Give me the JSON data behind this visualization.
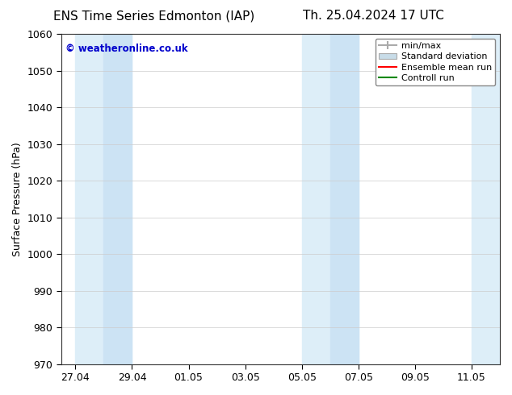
{
  "title_left": "ENS Time Series Edmonton (IAP)",
  "title_right": "Th. 25.04.2024 17 UTC",
  "ylabel": "Surface Pressure (hPa)",
  "ylim": [
    970,
    1060
  ],
  "yticks": [
    970,
    980,
    990,
    1000,
    1010,
    1020,
    1030,
    1040,
    1050,
    1060
  ],
  "bg_color": "#ffffff",
  "plot_bg_color": "#ffffff",
  "x_tick_positions": [
    0,
    2,
    4,
    6,
    8,
    10,
    12,
    14
  ],
  "x_tick_labels": [
    "27.04",
    "29.04",
    "01.05",
    "03.05",
    "05.05",
    "07.05",
    "09.05",
    "11.05"
  ],
  "x_lim": [
    -0.5,
    15.0
  ],
  "watermark": "© weatheronline.co.uk",
  "watermark_color": "#0000cc",
  "band_light": "#ddeef8",
  "band_dark": "#cce3f4",
  "title_fontsize": 11,
  "axis_label_fontsize": 9,
  "tick_fontsize": 9,
  "legend_minmax_color": "#aaaaaa",
  "legend_std_color": "#cccccc",
  "legend_ens_color": "#ff0000",
  "legend_ctrl_color": "#008800"
}
